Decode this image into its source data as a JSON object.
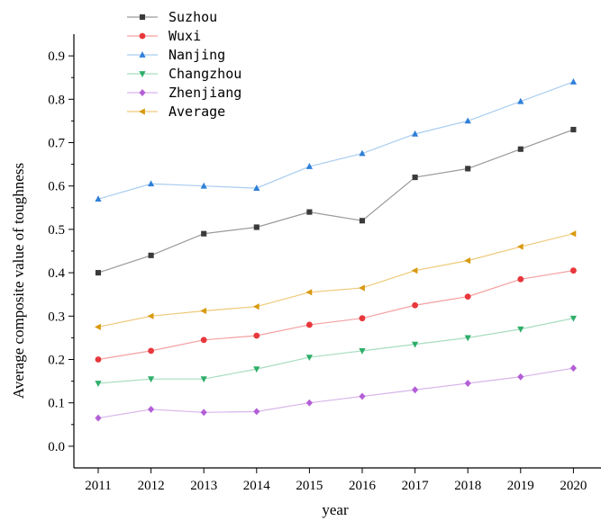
{
  "chart_data": {
    "type": "line",
    "title": "",
    "xlabel": "year",
    "ylabel": "Average composite value of toughness",
    "categories": [
      "2011",
      "2012",
      "2013",
      "2014",
      "2015",
      "2016",
      "2017",
      "2018",
      "2019",
      "2020"
    ],
    "yticks": [
      "0.0",
      "0.1",
      "0.2",
      "0.3",
      "0.4",
      "0.5",
      "0.6",
      "0.7",
      "0.8",
      "0.9"
    ],
    "ylim": [
      -0.05,
      0.95
    ],
    "grid": false,
    "legend_position": "top-left",
    "series": [
      {
        "name": "Suzhou",
        "color": "#3a3a3a",
        "line_color": "#9a9a9a",
        "marker": "square",
        "values": [
          0.4,
          0.44,
          0.49,
          0.505,
          0.54,
          0.52,
          0.62,
          0.64,
          0.685,
          0.73
        ]
      },
      {
        "name": "Wuxi",
        "color": "#e8383d",
        "line_color": "#f4a0a0",
        "marker": "circle",
        "values": [
          0.2,
          0.22,
          0.245,
          0.255,
          0.28,
          0.295,
          0.325,
          0.345,
          0.385,
          0.405
        ]
      },
      {
        "name": "Nanjing",
        "color": "#2f7fd8",
        "line_color": "#a9cdf0",
        "marker": "triangle-up",
        "values": [
          0.57,
          0.605,
          0.6,
          0.595,
          0.645,
          0.675,
          0.72,
          0.75,
          0.795,
          0.84
        ]
      },
      {
        "name": "Changzhou",
        "color": "#2eae6a",
        "line_color": "#a7ddbf",
        "marker": "triangle-down",
        "values": [
          0.145,
          0.155,
          0.155,
          0.178,
          0.205,
          0.22,
          0.235,
          0.25,
          0.27,
          0.295
        ]
      },
      {
        "name": "Zhenjiang",
        "color": "#b35fd6",
        "line_color": "#d9b5ea",
        "marker": "diamond",
        "values": [
          0.065,
          0.085,
          0.078,
          0.08,
          0.1,
          0.115,
          0.13,
          0.145,
          0.16,
          0.18
        ]
      },
      {
        "name": "Average",
        "color": "#d89a10",
        "line_color": "#efc97a",
        "marker": "triangle-left",
        "values": [
          0.275,
          0.3,
          0.312,
          0.322,
          0.355,
          0.365,
          0.405,
          0.428,
          0.46,
          0.49
        ]
      }
    ]
  }
}
